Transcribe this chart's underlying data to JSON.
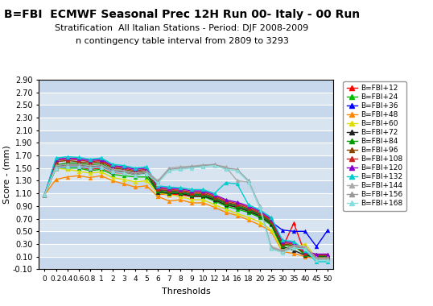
{
  "title": "B=FBI  ECMWF Seasonal Prec 12H Run 00- Italy - 00 Run",
  "subtitle1": "Stratification  All Italian Stations - Period: DJF 2008-2009",
  "subtitle2": "n contingency table interval from 2809 to 3293",
  "xlabel": "Thresholds",
  "ylabel": "Score - (mm)",
  "thresholds": [
    0,
    0.2,
    0.4,
    0.6,
    0.8,
    1,
    2,
    3,
    4,
    5,
    6,
    7,
    8,
    9,
    10,
    12,
    14,
    16,
    18,
    20,
    25,
    30,
    35,
    40,
    45,
    50
  ],
  "ylim": [
    -0.1,
    2.9
  ],
  "yticks": [
    -0.1,
    0.1,
    0.3,
    0.5,
    0.7,
    0.9,
    1.1,
    1.3,
    1.5,
    1.7,
    1.9,
    2.1,
    2.3,
    2.5,
    2.7,
    2.9
  ],
  "series": {
    "B=FBI+12": {
      "color": "#ff0000",
      "marker": "^",
      "data": [
        1.08,
        1.5,
        1.52,
        1.52,
        1.48,
        1.5,
        1.43,
        1.42,
        1.4,
        1.44,
        1.09,
        1.08,
        1.08,
        1.05,
        1.05,
        1.0,
        0.92,
        0.88,
        0.82,
        0.75,
        0.62,
        0.24,
        0.63,
        0.14,
        0.09,
        0.09
      ]
    },
    "B=FBI+24": {
      "color": "#00bb00",
      "marker": "^",
      "data": [
        1.08,
        1.5,
        1.5,
        1.5,
        1.46,
        1.48,
        1.4,
        1.38,
        1.36,
        1.36,
        1.12,
        1.1,
        1.1,
        1.06,
        1.05,
        0.98,
        0.9,
        0.85,
        0.8,
        0.72,
        0.6,
        0.22,
        0.28,
        0.12,
        0.08,
        0.08
      ]
    },
    "B=FBI+36": {
      "color": "#0000ff",
      "marker": "^",
      "data": [
        1.08,
        1.5,
        1.52,
        1.52,
        1.5,
        1.52,
        1.45,
        1.44,
        1.42,
        1.45,
        1.15,
        1.14,
        1.12,
        1.08,
        1.08,
        1.02,
        0.95,
        0.9,
        0.84,
        0.78,
        0.65,
        0.52,
        0.5,
        0.5,
        0.26,
        0.52
      ]
    },
    "B=FBI+48": {
      "color": "#ff8800",
      "marker": "^",
      "data": [
        1.08,
        1.32,
        1.36,
        1.38,
        1.35,
        1.38,
        1.3,
        1.25,
        1.2,
        1.22,
        1.05,
        0.98,
        1.0,
        0.95,
        0.95,
        0.88,
        0.8,
        0.75,
        0.68,
        0.6,
        0.5,
        0.18,
        0.15,
        0.1,
        0.07,
        0.07
      ]
    },
    "B=FBI+60": {
      "color": "#dddd00",
      "marker": "^",
      "data": [
        1.08,
        1.5,
        1.48,
        1.45,
        1.42,
        1.44,
        1.35,
        1.32,
        1.28,
        1.3,
        1.1,
        1.08,
        1.05,
        1.0,
        1.0,
        0.92,
        0.85,
        0.78,
        0.72,
        0.65,
        0.52,
        0.2,
        0.24,
        0.3,
        0.08,
        0.08
      ]
    },
    "B=FBI+72": {
      "color": "#222222",
      "marker": "^",
      "data": [
        1.08,
        1.52,
        1.55,
        1.55,
        1.52,
        1.54,
        1.46,
        1.44,
        1.4,
        1.42,
        1.12,
        1.1,
        1.1,
        1.06,
        1.06,
        1.0,
        0.92,
        0.88,
        0.82,
        0.74,
        0.62,
        0.26,
        0.2,
        0.12,
        0.1,
        0.1
      ]
    },
    "B=FBI+84": {
      "color": "#009900",
      "marker": "^",
      "data": [
        1.08,
        1.55,
        1.58,
        1.58,
        1.55,
        1.57,
        1.48,
        1.46,
        1.42,
        1.44,
        1.14,
        1.12,
        1.12,
        1.08,
        1.08,
        1.02,
        0.94,
        0.9,
        0.84,
        0.76,
        0.64,
        0.28,
        0.28,
        0.14,
        0.11,
        0.11
      ]
    },
    "B=FBI+96": {
      "color": "#884400",
      "marker": "^",
      "data": [
        1.08,
        1.6,
        1.62,
        1.6,
        1.58,
        1.6,
        1.5,
        1.48,
        1.44,
        1.46,
        1.16,
        1.14,
        1.14,
        1.1,
        1.1,
        1.04,
        0.96,
        0.92,
        0.86,
        0.78,
        0.66,
        0.3,
        0.28,
        0.15,
        0.12,
        0.12
      ]
    },
    "B=FBI+108": {
      "color": "#cc2222",
      "marker": "^",
      "data": [
        1.08,
        1.62,
        1.64,
        1.63,
        1.6,
        1.62,
        1.52,
        1.5,
        1.46,
        1.48,
        1.18,
        1.16,
        1.15,
        1.12,
        1.12,
        1.06,
        0.98,
        0.94,
        0.88,
        0.8,
        0.68,
        0.32,
        0.3,
        0.16,
        0.13,
        0.13
      ]
    },
    "B=FBI+120": {
      "color": "#8800cc",
      "marker": "^",
      "data": [
        1.08,
        1.64,
        1.66,
        1.65,
        1.62,
        1.64,
        1.54,
        1.52,
        1.48,
        1.5,
        1.2,
        1.18,
        1.17,
        1.14,
        1.14,
        1.08,
        1.0,
        0.96,
        0.9,
        0.82,
        0.7,
        0.34,
        0.32,
        0.18,
        0.14,
        0.14
      ]
    },
    "B=FBI+132": {
      "color": "#00cccc",
      "marker": "^",
      "data": [
        1.08,
        1.66,
        1.68,
        1.67,
        1.64,
        1.66,
        1.56,
        1.54,
        1.5,
        1.52,
        1.22,
        1.2,
        1.19,
        1.16,
        1.16,
        1.1,
        1.27,
        1.25,
        0.92,
        0.84,
        0.72,
        0.36,
        0.34,
        0.2,
        0.02,
        0.02
      ]
    },
    "B=FBI+144": {
      "color": "#aaaaaa",
      "marker": "^",
      "data": [
        1.08,
        1.54,
        1.56,
        1.56,
        1.54,
        1.55,
        1.48,
        1.46,
        1.42,
        1.45,
        1.3,
        1.5,
        1.52,
        1.53,
        1.55,
        1.55,
        1.52,
        1.3,
        1.28,
        0.88,
        0.26,
        0.2,
        0.28,
        0.26,
        0.08,
        0.08
      ]
    },
    "B=FBI+156": {
      "color": "#999999",
      "marker": "^",
      "data": [
        1.08,
        1.52,
        1.54,
        1.54,
        1.52,
        1.53,
        1.46,
        1.44,
        1.4,
        1.43,
        1.28,
        1.48,
        1.5,
        1.52,
        1.54,
        1.56,
        1.5,
        1.48,
        1.3,
        0.9,
        0.24,
        0.18,
        0.26,
        0.24,
        0.06,
        0.06
      ]
    },
    "B=FBI+168": {
      "color": "#88dddd",
      "marker": "^",
      "data": [
        1.08,
        1.5,
        1.52,
        1.52,
        1.5,
        1.51,
        1.44,
        1.42,
        1.38,
        1.41,
        1.26,
        1.46,
        1.48,
        1.5,
        1.52,
        1.54,
        1.48,
        1.46,
        1.28,
        0.88,
        0.22,
        0.16,
        0.24,
        0.22,
        0.04,
        0.04
      ]
    }
  },
  "background_color": "#ffffff",
  "plot_bg_color": "#d8e4f0",
  "grid_color": "#ffffff",
  "stripe_color": "#c8d8ec",
  "title_fontsize": 10,
  "subtitle_fontsize": 8
}
